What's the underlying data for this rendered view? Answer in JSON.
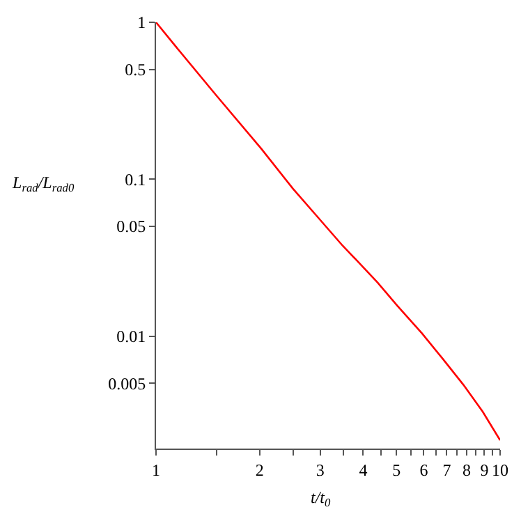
{
  "chart_data": {
    "type": "line",
    "xlabel": "t/t$_{0}$",
    "ylabel": "L$_{rad}$/L$_{rad0}$",
    "log": "xy",
    "x": [
      1,
      1.13,
      1.5,
      2.02,
      2.5,
      3.0,
      3.49,
      3.82,
      4.4,
      5.03,
      5.93,
      6.8,
      7.82,
      8.9,
      10
    ],
    "series": [
      {
        "color": "#ff0000",
        "values": [
          1,
          0.72,
          0.34,
          0.157,
          0.087,
          0.055,
          0.0376,
          0.0306,
          0.022,
          0.0156,
          0.0104,
          0.0072,
          0.0049,
          0.0033,
          0.00217
        ]
      }
    ],
    "xlim": [
      1,
      10
    ],
    "ylim": [
      0.00192,
      1
    ],
    "xticks": [
      1,
      {
        "value": 1.5,
        "label": null
      },
      2,
      {
        "value": 2.5,
        "label": null
      },
      3,
      {
        "value": 3.5,
        "label": null
      },
      4,
      {
        "value": 4.5,
        "label": null
      },
      5,
      {
        "value": 5.5,
        "label": null
      },
      6,
      {
        "value": 6.5,
        "label": null
      },
      7,
      {
        "value": 7.5,
        "label": null
      },
      8,
      {
        "value": 8.5,
        "label": null
      },
      9,
      {
        "value": 9.5,
        "label": null
      },
      10
    ],
    "yticks": [
      1,
      0.5,
      0.1,
      0.05,
      0.01,
      0.005
    ],
    "marker": "none",
    "line_style": "solid"
  }
}
